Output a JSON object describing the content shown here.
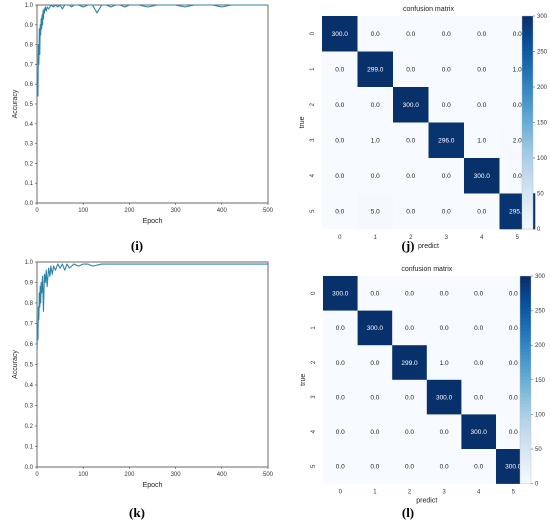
{
  "panel_labels": [
    "(i)",
    "(j)",
    "(k)",
    "(l)"
  ],
  "colors": {
    "line": "#2b83a8",
    "heat_low": "#f7fbff",
    "heat_high": "#08306b",
    "dark_text": "#1b1b1b",
    "light_text": "#ffffff"
  },
  "chart_data": [
    {
      "type": "line",
      "panel": "(i)",
      "xlabel": "Epoch",
      "ylabel": "Accuracy",
      "xlim": [
        0,
        500
      ],
      "ylim": [
        0.0,
        1.0
      ],
      "xticks": [
        0,
        100,
        200,
        300,
        400,
        500
      ],
      "yticks": [
        0.0,
        0.1,
        0.2,
        0.3,
        0.4,
        0.5,
        0.6,
        0.7,
        0.8,
        0.9,
        1.0
      ],
      "series": [
        {
          "x": [
            0,
            1,
            2,
            3,
            4,
            5,
            6,
            7,
            8,
            9,
            10,
            11,
            12,
            13,
            14,
            15,
            16,
            18,
            20,
            22,
            25,
            28,
            30,
            35,
            40,
            45,
            50,
            55,
            60,
            70,
            75,
            80,
            90,
            100,
            110,
            120,
            130,
            140,
            150,
            160,
            170,
            180,
            190,
            200,
            220,
            240,
            260,
            280,
            300,
            320,
            340,
            360,
            380,
            400,
            420,
            440,
            460,
            480,
            500
          ],
          "y": [
            0.55,
            0.6,
            0.54,
            0.8,
            0.7,
            0.88,
            0.75,
            0.9,
            0.85,
            0.93,
            0.88,
            0.95,
            0.9,
            0.97,
            0.93,
            0.98,
            0.96,
            0.99,
            0.97,
            0.99,
            0.98,
            0.99,
            1.0,
            0.99,
            1.0,
            0.99,
            1.0,
            0.98,
            1.0,
            1.0,
            0.99,
            1.0,
            1.0,
            0.99,
            1.0,
            1.0,
            0.96,
            1.0,
            1.0,
            0.99,
            1.0,
            1.0,
            0.99,
            1.0,
            1.0,
            0.99,
            1.0,
            1.0,
            1.0,
            0.99,
            1.0,
            1.0,
            1.0,
            0.99,
            1.0,
            1.0,
            1.0,
            1.0,
            1.0
          ]
        }
      ]
    },
    {
      "type": "heatmap",
      "panel": "(j)",
      "title": "confusion matrix",
      "xlabel": "predict",
      "ylabel": "true",
      "labels": [
        "0",
        "1",
        "2",
        "3",
        "4",
        "5"
      ],
      "cells": [
        [
          "300.0",
          "0.0",
          "0.0",
          "0.0",
          "0.0",
          "0.0"
        ],
        [
          "0.0",
          "299.0",
          "0.0",
          "0.0",
          "0.0",
          "1.0"
        ],
        [
          "0.0",
          "0.0",
          "300.0",
          "0.0",
          "0.0",
          "0.0"
        ],
        [
          "0.0",
          "1.0",
          "0.0",
          "296.0",
          "1.0",
          "2.0"
        ],
        [
          "0.0",
          "0.0",
          "0.0",
          "0.0",
          "300.0",
          "0.0"
        ],
        [
          "0.0",
          "5.0",
          "0.0",
          "0.0",
          "0.0",
          "295.0"
        ]
      ],
      "colorbar_ticks": [
        0,
        50,
        100,
        150,
        200,
        250,
        300
      ],
      "vmax": 300
    },
    {
      "type": "line",
      "panel": "(k)",
      "xlabel": "Epoch",
      "ylabel": "Accuracy",
      "xlim": [
        0,
        500
      ],
      "ylim": [
        0.0,
        1.0
      ],
      "xticks": [
        0,
        100,
        200,
        300,
        400,
        500
      ],
      "yticks": [
        0.0,
        0.1,
        0.2,
        0.3,
        0.4,
        0.5,
        0.6,
        0.7,
        0.8,
        0.9,
        1.0
      ],
      "series": [
        {
          "x": [
            0,
            1,
            2,
            3,
            4,
            5,
            6,
            7,
            8,
            9,
            10,
            12,
            14,
            16,
            18,
            20,
            22,
            25,
            28,
            30,
            33,
            36,
            40,
            45,
            50,
            55,
            60,
            65,
            70,
            80,
            90,
            100,
            110,
            120,
            140,
            160,
            180,
            200,
            220,
            240,
            260,
            280,
            300,
            320,
            340,
            360,
            380,
            400,
            420,
            440,
            460,
            480,
            500
          ],
          "y": [
            0.58,
            0.7,
            0.62,
            0.78,
            0.72,
            0.85,
            0.78,
            0.88,
            0.8,
            0.9,
            0.85,
            0.93,
            0.76,
            0.94,
            0.9,
            0.96,
            0.88,
            0.97,
            0.93,
            0.98,
            0.94,
            0.98,
            0.96,
            0.99,
            0.97,
            0.99,
            0.96,
            0.99,
            0.97,
            0.99,
            0.98,
            0.99,
            0.99,
            0.98,
            0.99,
            0.99,
            0.99,
            0.99,
            0.99,
            0.99,
            0.99,
            0.99,
            0.99,
            0.99,
            0.99,
            0.99,
            0.99,
            0.99,
            0.99,
            0.99,
            0.99,
            0.99,
            0.99
          ]
        }
      ]
    },
    {
      "type": "heatmap",
      "panel": "(l)",
      "title": "confusion matrix",
      "xlabel": "predict",
      "ylabel": "true",
      "labels": [
        "0",
        "1",
        "2",
        "3",
        "4",
        "5"
      ],
      "cells": [
        [
          "300.0",
          "0.0",
          "0.0",
          "0.0",
          "0.0",
          "0.0"
        ],
        [
          "0.0",
          "300.0",
          "0.0",
          "0.0",
          "0.0",
          "0.0"
        ],
        [
          "0.0",
          "0.0",
          "299.0",
          "1.0",
          "0.0",
          "0.0"
        ],
        [
          "0.0",
          "0.0",
          "0.0",
          "300.0",
          "0.0",
          "0.0"
        ],
        [
          "0.0",
          "0.0",
          "0.0",
          "0.0",
          "300.0",
          "0.0"
        ],
        [
          "0.0",
          "0.0",
          "0.0",
          "0.0",
          "0.0",
          "300.0"
        ]
      ],
      "colorbar_ticks": [
        0,
        50,
        100,
        150,
        200,
        250,
        300
      ],
      "vmax": 300
    }
  ]
}
